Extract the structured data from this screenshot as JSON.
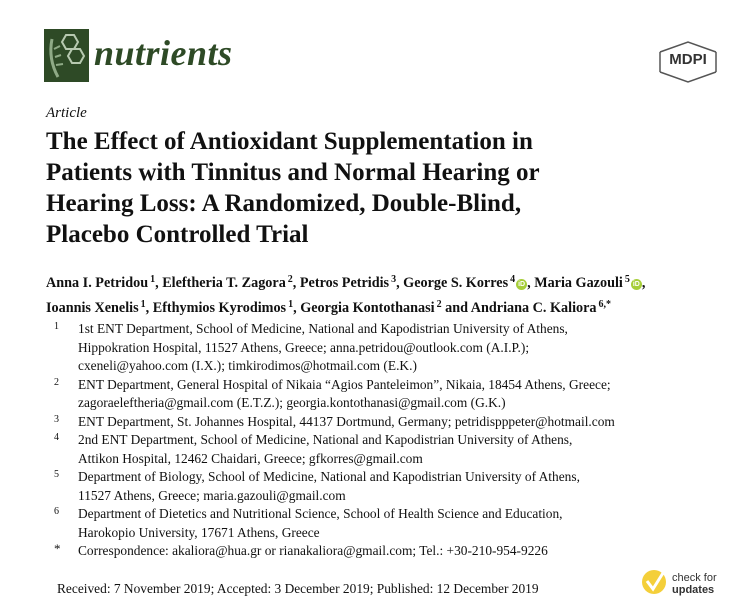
{
  "header": {
    "journal": "nutrients",
    "publisher_logo": "MDPI",
    "brand_color": "#2e4a26"
  },
  "article_type": "Article",
  "title_lines": [
    "The Effect of Antioxidant Supplementation in",
    "Patients with Tinnitus and Normal Hearing or",
    "Hearing Loss: A Randomized, Double-Blind,",
    "Placebo Controlled Trial"
  ],
  "authors": [
    {
      "name": "Anna I. Petridou",
      "sup": "1"
    },
    {
      "name": "Eleftheria T. Zagora",
      "sup": "2"
    },
    {
      "name": "Petros Petridis",
      "sup": "3"
    },
    {
      "name": "George S. Korres",
      "sup": "4",
      "orcid": true
    },
    {
      "name": "Maria Gazouli",
      "sup": "5",
      "orcid": true
    },
    {
      "name": "Ioannis Xenelis",
      "sup": "1"
    },
    {
      "name": "Efthymios Kyrodimos",
      "sup": "1"
    },
    {
      "name": "Georgia Kontothanasi",
      "sup": "2"
    },
    {
      "name": "Andriana C. Kaliora",
      "sup": "6,*"
    }
  ],
  "authors_and": "and",
  "affiliations": [
    {
      "num": "1",
      "lines": [
        "1st ENT Department, School of Medicine, National and Kapodistrian University of Athens,",
        "Hippokration Hospital, 11527 Athens, Greece; anna.petridou@outlook.com (A.I.P.);",
        "cxeneli@yahoo.com (I.X.); timkirodimos@hotmail.com (E.K.)"
      ]
    },
    {
      "num": "2",
      "lines": [
        "ENT Department, General Hospital of Nikaia “Agios Panteleimon”, Nikaia, 18454 Athens, Greece;",
        "zagoraeleftheria@gmail.com (E.T.Z.); georgia.kontothanasi@gmail.com (G.K.)"
      ]
    },
    {
      "num": "3",
      "lines": [
        "ENT Department, St. Johannes Hospital, 44137 Dortmund, Germany; petridispppeter@hotmail.com"
      ]
    },
    {
      "num": "4",
      "lines": [
        "2nd ENT Department, School of Medicine, National and Kapodistrian University of Athens,",
        "Attikon Hospital, 12462 Chaidari, Greece; gfkorres@gmail.com"
      ]
    },
    {
      "num": "5",
      "lines": [
        "Department of Biology, School of Medicine, National and Kapodistrian University of Athens,",
        "11527 Athens, Greece; maria.gazouli@gmail.com"
      ]
    },
    {
      "num": "6",
      "lines": [
        "Department of Dietetics and Nutritional Science, School of Health Science and Education,",
        "Harokopio University, 17671 Athens, Greece"
      ]
    },
    {
      "num": "*",
      "lines": [
        "Correspondence: akaliora@hua.gr or rianakaliora@gmail.com; Tel.: +30-210-954-9226"
      ]
    }
  ],
  "dates": "Received: 7 November 2019; Accepted: 3 December 2019; Published: 12 December 2019",
  "check_for_updates": {
    "line1": "check for",
    "line2": "updates",
    "color": "#f4cf3a"
  }
}
